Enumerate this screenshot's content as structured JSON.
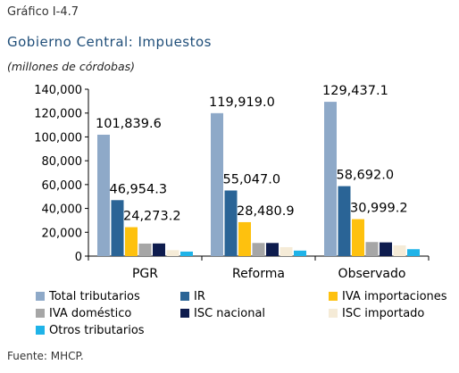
{
  "figure_label": "Gráfico I-4.7",
  "source": "Fuente: MHCP.",
  "chart_data": {
    "type": "bar",
    "title": "Gobierno Central: Impuestos",
    "subtitle": "(millones de córdobas)",
    "xlabel": "",
    "ylabel": "",
    "ylim": [
      0,
      140000
    ],
    "yticks": [
      "0",
      "20,000",
      "40,000",
      "60,000",
      "80,000",
      "100,000",
      "120,000",
      "140,000"
    ],
    "grid": false,
    "legend_position": "bottom",
    "categories": [
      "PGR",
      "Reforma",
      "Observado"
    ],
    "series": [
      {
        "name": "Total tributarios",
        "color": "#8ea9c8",
        "values": [
          101839.6,
          119919.0,
          129437.1
        ],
        "labels": [
          "101,839.6",
          "119,919.0",
          "129,437.1"
        ]
      },
      {
        "name": "IR",
        "color": "#2a6496",
        "values": [
          46954.3,
          55047.0,
          58692.0
        ],
        "labels": [
          "46,954.3",
          "55,047.0",
          "58,692.0"
        ]
      },
      {
        "name": "IVA importaciones",
        "color": "#fec10e",
        "values": [
          24273.2,
          28480.9,
          30999.2
        ],
        "labels": [
          "24,273.2",
          "28,480.9",
          "30,999.2"
        ]
      },
      {
        "name": "IVA doméstico",
        "color": "#a6a6a6",
        "values": [
          10500,
          11000,
          11800
        ],
        "labels": [
          "",
          "",
          ""
        ]
      },
      {
        "name": "ISC nacional",
        "color": "#0e1c4e",
        "values": [
          10600,
          11000,
          11500
        ],
        "labels": [
          "",
          "",
          ""
        ]
      },
      {
        "name": "ISC importado",
        "color": "#f5ebd7",
        "values": [
          5000,
          7500,
          9000
        ],
        "labels": [
          "",
          "",
          ""
        ]
      },
      {
        "name": "Otros tributarios",
        "color": "#1fb3e8",
        "values": [
          3800,
          4600,
          5800
        ],
        "labels": [
          "",
          "",
          ""
        ]
      }
    ]
  }
}
